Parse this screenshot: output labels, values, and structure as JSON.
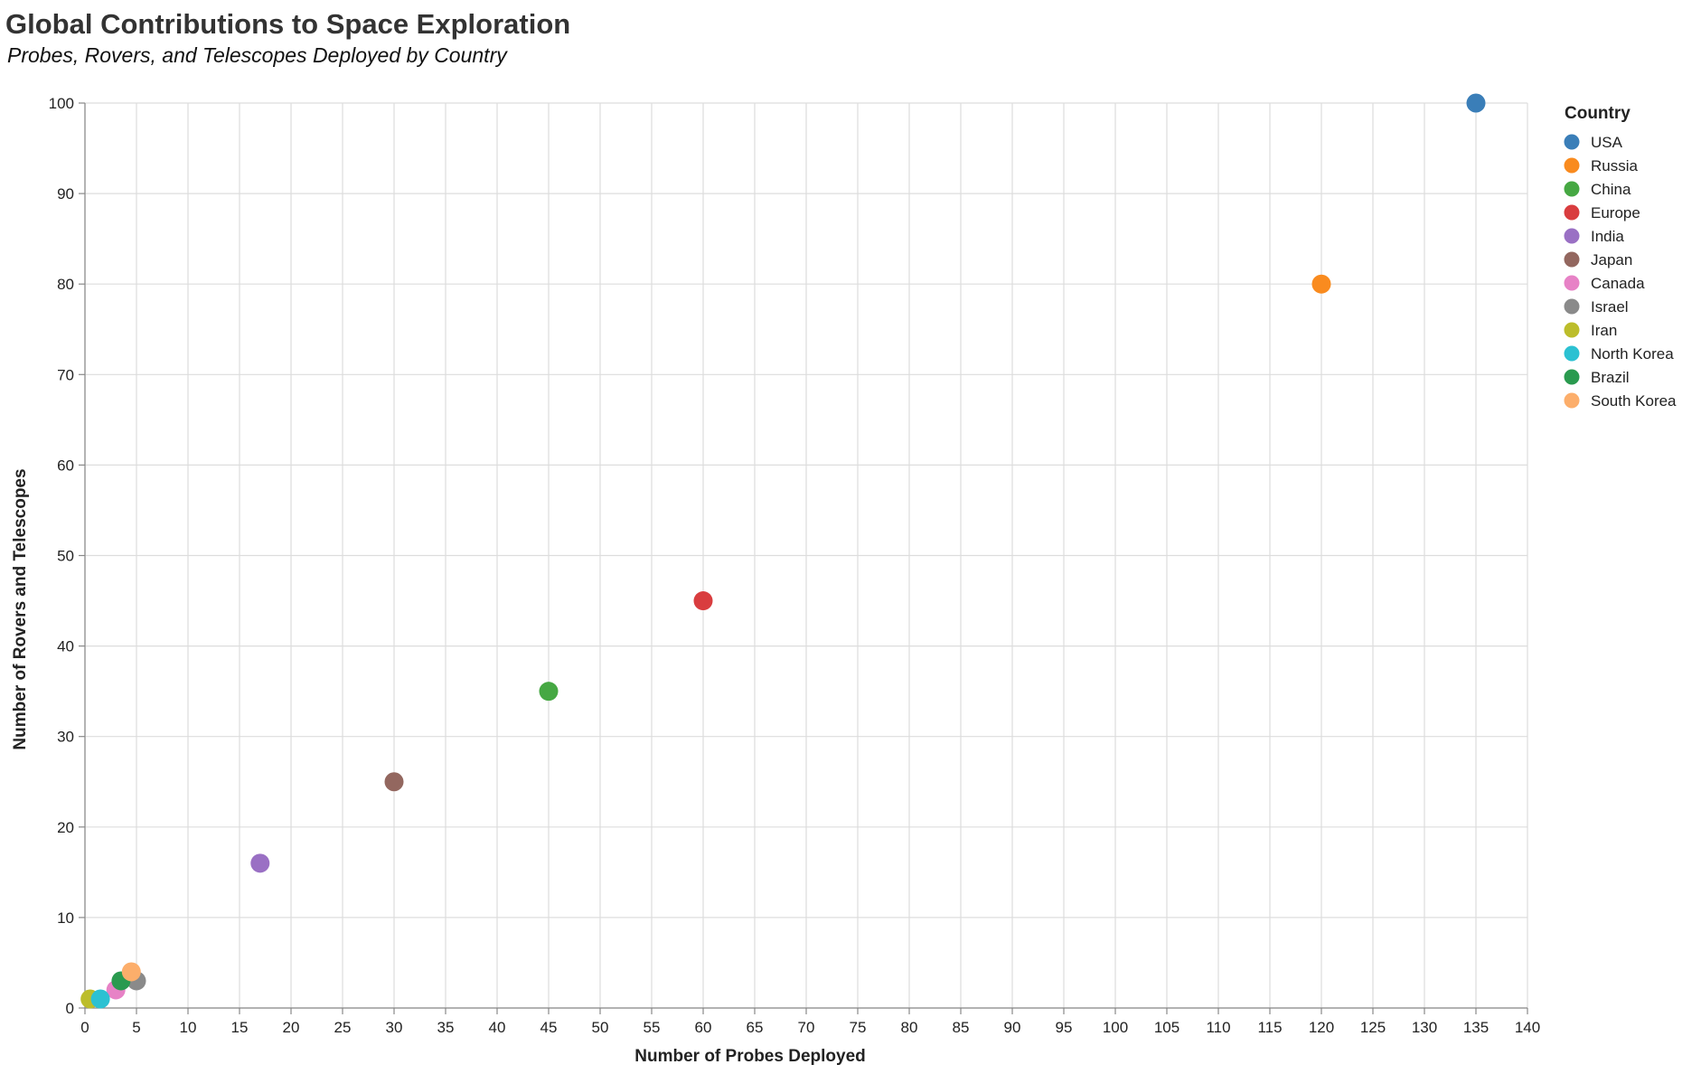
{
  "chart_data": {
    "type": "scatter",
    "title": "Global Contributions to Space Exploration",
    "subtitle": "Probes, Rovers, and Telescopes Deployed by Country",
    "xlabel": "Number of Probes Deployed",
    "ylabel": "Number of Rovers and Telescopes",
    "xlim": [
      0,
      140
    ],
    "ylim": [
      0,
      100
    ],
    "x_tick_step": 5,
    "y_tick_step": 10,
    "grid": true,
    "legend_title": "Country",
    "legend_position": "right",
    "points": [
      {
        "country": "USA",
        "x": 135,
        "y": 100,
        "color": "#3a7eb8"
      },
      {
        "country": "Russia",
        "x": 120,
        "y": 80,
        "color": "#f98b1f"
      },
      {
        "country": "China",
        "x": 45,
        "y": 35,
        "color": "#46a843"
      },
      {
        "country": "Europe",
        "x": 60,
        "y": 45,
        "color": "#d93d3f"
      },
      {
        "country": "India",
        "x": 17,
        "y": 16,
        "color": "#9a70c4"
      },
      {
        "country": "Japan",
        "x": 30,
        "y": 25,
        "color": "#93675f"
      },
      {
        "country": "Canada",
        "x": 3,
        "y": 2,
        "color": "#e782c6"
      },
      {
        "country": "Israel",
        "x": 5,
        "y": 3,
        "color": "#8a8a8a"
      },
      {
        "country": "Iran",
        "x": 0.5,
        "y": 1,
        "color": "#bcbd2b"
      },
      {
        "country": "North Korea",
        "x": 1.5,
        "y": 1,
        "color": "#2cc1d2"
      },
      {
        "country": "Brazil",
        "x": 3.5,
        "y": 3,
        "color": "#2a9a4f"
      },
      {
        "country": "South Korea",
        "x": 4.5,
        "y": 4,
        "color": "#fcae6b"
      }
    ]
  }
}
